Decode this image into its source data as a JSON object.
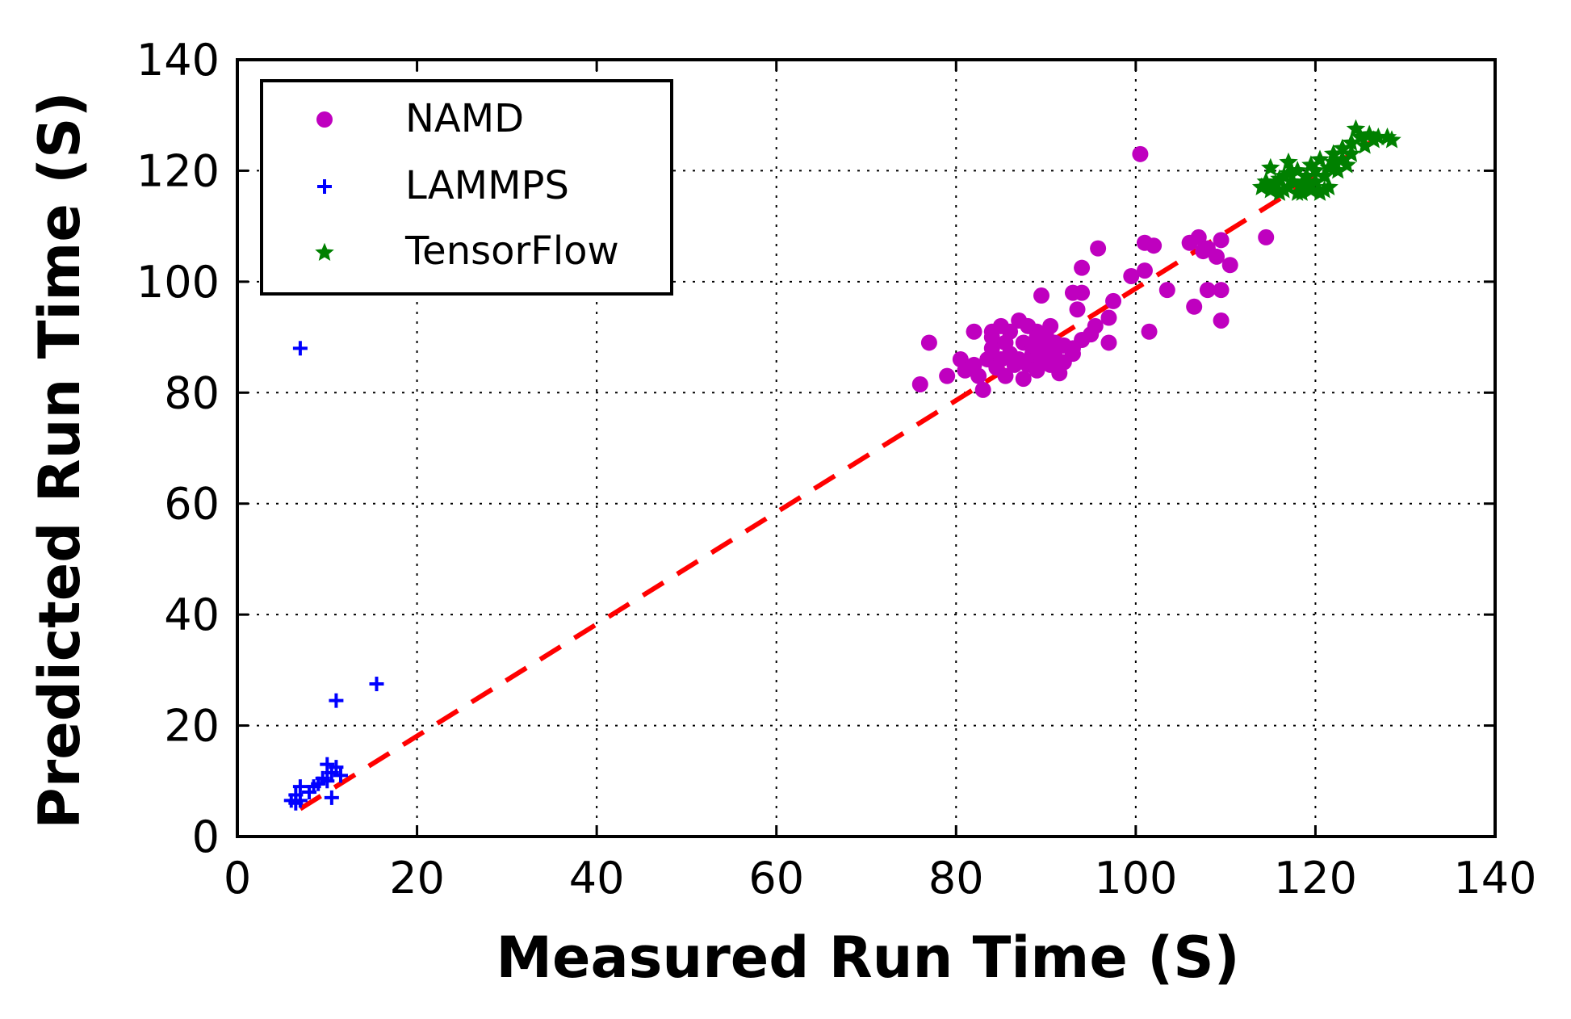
{
  "chart_data": {
    "type": "scatter",
    "title": "",
    "xlabel": "Measured Run Time (S)",
    "ylabel": "Predicted Run Time (S)",
    "xlim": [
      0,
      140
    ],
    "ylim": [
      0,
      140
    ],
    "xticks": [
      "0",
      "20",
      "40",
      "60",
      "80",
      "100",
      "120",
      "140"
    ],
    "yticks": [
      "0",
      "20",
      "40",
      "60",
      "80",
      "100",
      "120",
      "140"
    ],
    "grid": true,
    "legend_position": "top-left",
    "reference_line": {
      "x": [
        7,
        127
      ],
      "y": [
        5,
        126
      ],
      "color": "#ff0000",
      "style": "dashed"
    },
    "series": [
      {
        "name": "NAMD",
        "marker": "circle",
        "color": "#bf00bf",
        "points": [
          [
            100.5,
            123
          ],
          [
            114.5,
            108
          ],
          [
            95.8,
            106
          ],
          [
            101,
            107
          ],
          [
            102,
            106.5
          ],
          [
            106,
            107
          ],
          [
            107,
            108
          ],
          [
            108,
            106
          ],
          [
            109.5,
            107.5
          ],
          [
            107.5,
            105.5
          ],
          [
            109,
            104.5
          ],
          [
            110.5,
            103
          ],
          [
            101,
            102
          ],
          [
            99.5,
            101
          ],
          [
            103.5,
            98.5
          ],
          [
            108,
            98.5
          ],
          [
            109.5,
            98.5
          ],
          [
            106.5,
            95.5
          ],
          [
            109.5,
            93
          ],
          [
            101.5,
            91
          ],
          [
            94,
            102.5
          ],
          [
            94,
            98
          ],
          [
            93,
            98
          ],
          [
            89.5,
            97.5
          ],
          [
            97.5,
            96.5
          ],
          [
            93.5,
            95
          ],
          [
            97,
            93.5
          ],
          [
            95.5,
            92
          ],
          [
            95,
            90.5
          ],
          [
            94,
            89.5
          ],
          [
            97,
            89
          ],
          [
            93,
            88
          ],
          [
            92,
            88.5
          ],
          [
            91,
            89
          ],
          [
            90,
            90.5
          ],
          [
            89,
            91
          ],
          [
            88,
            92
          ],
          [
            87,
            93
          ],
          [
            86,
            91
          ],
          [
            85,
            92
          ],
          [
            84,
            91
          ],
          [
            82,
            91
          ],
          [
            77,
            89
          ],
          [
            79,
            83
          ],
          [
            76,
            81.5
          ],
          [
            80.5,
            86
          ],
          [
            81,
            84
          ],
          [
            82,
            85
          ],
          [
            82.5,
            83
          ],
          [
            83,
            80.5
          ],
          [
            83.5,
            86
          ],
          [
            84,
            88
          ],
          [
            84.5,
            84.5
          ],
          [
            85,
            86
          ],
          [
            85.5,
            83
          ],
          [
            86,
            87
          ],
          [
            86.5,
            85
          ],
          [
            87,
            86
          ],
          [
            87.5,
            82.5
          ],
          [
            88,
            85
          ],
          [
            88.5,
            87
          ],
          [
            89,
            84
          ],
          [
            89.5,
            86
          ],
          [
            90,
            88
          ],
          [
            90.5,
            85
          ],
          [
            91,
            86.5
          ],
          [
            91.5,
            83.5
          ],
          [
            92,
            85.5
          ],
          [
            93,
            87
          ],
          [
            84,
            90
          ],
          [
            85.5,
            89
          ],
          [
            87.5,
            89
          ],
          [
            88.5,
            88.5
          ],
          [
            89,
            90
          ],
          [
            90.5,
            92
          ]
        ]
      },
      {
        "name": "LAMMPS",
        "marker": "plus",
        "color": "#0000ff",
        "points": [
          [
            7,
            88
          ],
          [
            15.5,
            27.5
          ],
          [
            11,
            24.5
          ],
          [
            10,
            13
          ],
          [
            11,
            12.5
          ],
          [
            10.5,
            11.5
          ],
          [
            11.5,
            11
          ],
          [
            10,
            10
          ],
          [
            9,
            9.5
          ],
          [
            8.5,
            9
          ],
          [
            7,
            9
          ],
          [
            6.5,
            7.5
          ],
          [
            7,
            6.5
          ],
          [
            6,
            6.5
          ],
          [
            10.5,
            7
          ],
          [
            9.5,
            10.5
          ],
          [
            8,
            8
          ],
          [
            6.5,
            6
          ]
        ]
      },
      {
        "name": "TensorFlow",
        "marker": "star",
        "color": "#008000",
        "points": [
          [
            114,
            117
          ],
          [
            114.5,
            118
          ],
          [
            115,
            116.5
          ],
          [
            115,
            120.5
          ],
          [
            115.5,
            117.5
          ],
          [
            116,
            118.5
          ],
          [
            116,
            116
          ],
          [
            116.5,
            119
          ],
          [
            117,
            117
          ],
          [
            117,
            121.5
          ],
          [
            117.5,
            118
          ],
          [
            118,
            116
          ],
          [
            118,
            120
          ],
          [
            118.5,
            117.5
          ],
          [
            119,
            119
          ],
          [
            119.5,
            116.5
          ],
          [
            119.5,
            121
          ],
          [
            120,
            118
          ],
          [
            120,
            120
          ],
          [
            120.5,
            116
          ],
          [
            120.5,
            122
          ],
          [
            121,
            119
          ],
          [
            121.5,
            120.5
          ],
          [
            121.5,
            117
          ],
          [
            122,
            121.5
          ],
          [
            122,
            123
          ],
          [
            122.5,
            120
          ],
          [
            123,
            122
          ],
          [
            123,
            124
          ],
          [
            123.5,
            121
          ],
          [
            124,
            123
          ],
          [
            124,
            125
          ],
          [
            124.5,
            127.5
          ],
          [
            125,
            126
          ],
          [
            125.5,
            124.5
          ],
          [
            126,
            126.5
          ],
          [
            126.5,
            125.5
          ],
          [
            127,
            126
          ],
          [
            128,
            126
          ],
          [
            128.5,
            125.5
          ],
          [
            116.5,
            116.5
          ],
          [
            118.5,
            116
          ],
          [
            121,
            116.5
          ],
          [
            119,
            117.5
          ],
          [
            117,
            119.5
          ]
        ]
      }
    ]
  }
}
